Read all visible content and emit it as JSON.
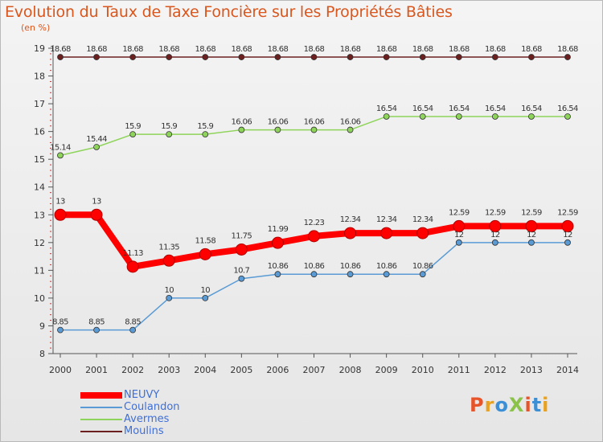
{
  "title": "Evolution du Taux de Taxe Foncière sur les Propriétés Bâties",
  "unit": "(en %)",
  "logo": "ProXiti",
  "chart_data": {
    "type": "line",
    "title": "Evolution du Taux de Taxe Foncière sur les Propriétés Bâties",
    "ylabel": "(en %)",
    "xlabel": "",
    "ylim": [
      8,
      19
    ],
    "yticks": [
      8,
      9,
      10,
      11,
      12,
      13,
      14,
      15,
      16,
      17,
      18,
      19
    ],
    "grid": false,
    "legend": "bottom-left",
    "x": [
      "2000",
      "2001",
      "2002",
      "2003",
      "2004",
      "2005",
      "2006",
      "2007",
      "2008",
      "2009",
      "2010",
      "2011",
      "2012",
      "2013",
      "2014"
    ],
    "series": [
      {
        "name": "Moulins",
        "color": "#6b1f1f",
        "values": [
          18.68,
          18.68,
          18.68,
          18.68,
          18.68,
          18.68,
          18.68,
          18.68,
          18.68,
          18.68,
          18.68,
          18.68,
          18.68,
          18.68,
          18.68
        ]
      },
      {
        "name": "Avermes",
        "color": "#8ed45a",
        "values": [
          15.14,
          15.44,
          15.9,
          15.9,
          15.9,
          16.06,
          16.06,
          16.06,
          16.06,
          16.54,
          16.54,
          16.54,
          16.54,
          16.54,
          16.54
        ]
      },
      {
        "name": "Coulandon",
        "color": "#5a9bd5",
        "values": [
          8.85,
          8.85,
          8.85,
          10,
          10,
          10.7,
          10.86,
          10.86,
          10.86,
          10.86,
          10.86,
          12,
          12,
          12,
          12
        ]
      },
      {
        "name": "NEUVY",
        "color": "#ff0000",
        "values": [
          13,
          13,
          11.13,
          11.35,
          11.58,
          11.75,
          11.99,
          12.23,
          12.34,
          12.34,
          12.34,
          12.59,
          12.59,
          12.59,
          12.59
        ]
      }
    ],
    "legend_order": [
      "NEUVY",
      "Coulandon",
      "Avermes",
      "Moulins"
    ]
  }
}
